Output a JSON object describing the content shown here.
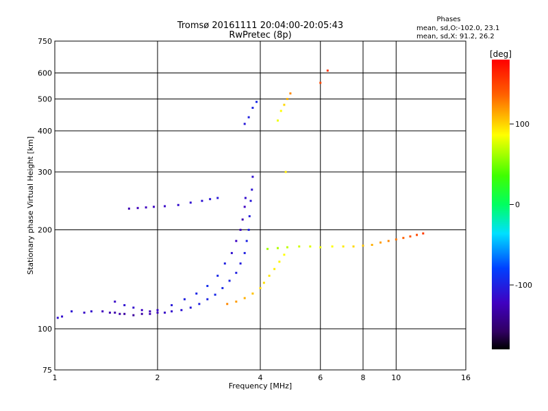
{
  "chart_data": {
    "type": "scatter",
    "title": "Tromsø 20161111 20:04:00-20:05:43",
    "subtitle": "RwPretec (8p)",
    "xlabel": "Frequency [MHz]",
    "ylabel": "Stationary phase Virtual Height [km]",
    "x_scale": "log",
    "y_scale": "log",
    "xlim": [
      1,
      16
    ],
    "ylim": [
      75,
      750
    ],
    "x_ticks": [
      1,
      2,
      4,
      6,
      8,
      10,
      16
    ],
    "y_ticks": [
      75,
      100,
      200,
      300,
      400,
      500,
      600,
      750
    ],
    "grid": true,
    "legend": {
      "title": "Phases",
      "lines": [
        "mean, sd,O:-102.0, 23.1",
        "mean, sd,X:  91.2, 26.2"
      ]
    },
    "colorbar": {
      "label": "[deg]",
      "range": [
        -180,
        180
      ],
      "ticks": [
        100,
        0,
        -100
      ]
    },
    "series": [
      {
        "points": [
          [
            1.02,
            108,
            -110
          ],
          [
            1.05,
            109,
            -112
          ],
          [
            1.12,
            113,
            -108
          ],
          [
            1.22,
            112,
            -115
          ],
          [
            1.28,
            113,
            -112
          ],
          [
            1.38,
            113,
            -120
          ],
          [
            1.45,
            112,
            -125
          ],
          [
            1.5,
            112,
            -128
          ],
          [
            1.55,
            111,
            -130
          ],
          [
            1.6,
            111,
            -132
          ],
          [
            1.7,
            110,
            -135
          ],
          [
            1.8,
            111,
            -130
          ],
          [
            1.9,
            111,
            -126
          ],
          [
            2.0,
            112,
            -120
          ],
          [
            2.1,
            112,
            -115
          ],
          [
            2.2,
            113,
            -112
          ],
          [
            2.35,
            114,
            -108
          ],
          [
            2.5,
            116,
            -105
          ],
          [
            2.65,
            119,
            -100
          ],
          [
            2.8,
            123,
            -98
          ],
          [
            2.95,
            127,
            -95
          ],
          [
            3.1,
            133,
            -95
          ],
          [
            3.25,
            140,
            -98
          ],
          [
            3.4,
            148,
            -100
          ],
          [
            3.5,
            158,
            -102
          ],
          [
            3.6,
            170,
            -100
          ],
          [
            3.65,
            185,
            -98
          ],
          [
            3.7,
            200,
            -100
          ],
          [
            3.72,
            220,
            -102
          ],
          [
            3.75,
            245,
            -105
          ],
          [
            3.78,
            265,
            -108
          ],
          [
            3.8,
            290,
            -110
          ]
        ]
      },
      {
        "points": [
          [
            1.5,
            121,
            -115
          ],
          [
            1.6,
            118,
            -110
          ],
          [
            1.7,
            116,
            -112
          ],
          [
            1.8,
            114,
            -118
          ],
          [
            1.9,
            113,
            -122
          ],
          [
            2.0,
            114,
            -115
          ],
          [
            2.2,
            118,
            -105
          ],
          [
            2.4,
            123,
            -100
          ],
          [
            2.6,
            128,
            -96
          ],
          [
            2.8,
            135,
            -92
          ],
          [
            3.0,
            145,
            -95
          ],
          [
            3.15,
            158,
            -100
          ],
          [
            3.3,
            170,
            -110
          ],
          [
            3.4,
            185,
            -118
          ],
          [
            3.5,
            200,
            -122
          ],
          [
            3.55,
            215,
            -125
          ],
          [
            3.6,
            235,
            -118
          ],
          [
            3.62,
            250,
            -112
          ]
        ]
      },
      {
        "points": [
          [
            3.2,
            119,
            130
          ],
          [
            3.4,
            121,
            125
          ],
          [
            3.6,
            124,
            120
          ],
          [
            3.8,
            128,
            115
          ],
          [
            4.0,
            133,
            110
          ],
          [
            4.1,
            138,
            108
          ],
          [
            4.25,
            145,
            106
          ],
          [
            4.4,
            152,
            104
          ],
          [
            4.55,
            160,
            102
          ],
          [
            4.7,
            168,
            100
          ]
        ]
      },
      {
        "points": [
          [
            4.2,
            175,
            70
          ],
          [
            4.5,
            176,
            75
          ],
          [
            4.8,
            177,
            80
          ],
          [
            5.2,
            178,
            85
          ],
          [
            5.6,
            178,
            90
          ],
          [
            6.0,
            177,
            95
          ],
          [
            6.5,
            178,
            100
          ],
          [
            7.0,
            178,
            105
          ],
          [
            7.5,
            178,
            110
          ],
          [
            8.0,
            179,
            115
          ],
          [
            8.5,
            180,
            120
          ],
          [
            9.0,
            183,
            125
          ],
          [
            9.5,
            185,
            130
          ],
          [
            10.0,
            187,
            135
          ],
          [
            10.5,
            189,
            140
          ],
          [
            11.0,
            191,
            145
          ],
          [
            11.5,
            193,
            150
          ],
          [
            12.0,
            195,
            155
          ]
        ]
      },
      {
        "points": [
          [
            1.65,
            232,
            -125
          ],
          [
            1.75,
            233,
            -122
          ],
          [
            1.85,
            234,
            -120
          ],
          [
            1.95,
            235,
            -118
          ],
          [
            2.1,
            236,
            -115
          ],
          [
            2.3,
            238,
            -112
          ],
          [
            2.5,
            242,
            -110
          ],
          [
            2.7,
            245,
            -108
          ],
          [
            2.85,
            248,
            -106
          ],
          [
            3.0,
            250,
            -105
          ]
        ]
      },
      {
        "points": [
          [
            4.6,
            460,
            100
          ],
          [
            4.7,
            480,
            110
          ],
          [
            4.8,
            500,
            120
          ],
          [
            4.9,
            520,
            130
          ],
          [
            4.5,
            430,
            95
          ],
          [
            4.75,
            300,
            105
          ],
          [
            3.6,
            420,
            -105
          ],
          [
            3.7,
            440,
            -100
          ],
          [
            3.8,
            470,
            -98
          ],
          [
            3.9,
            490,
            -95
          ],
          [
            6.0,
            560,
            150
          ],
          [
            6.3,
            610,
            160
          ]
        ]
      }
    ]
  }
}
